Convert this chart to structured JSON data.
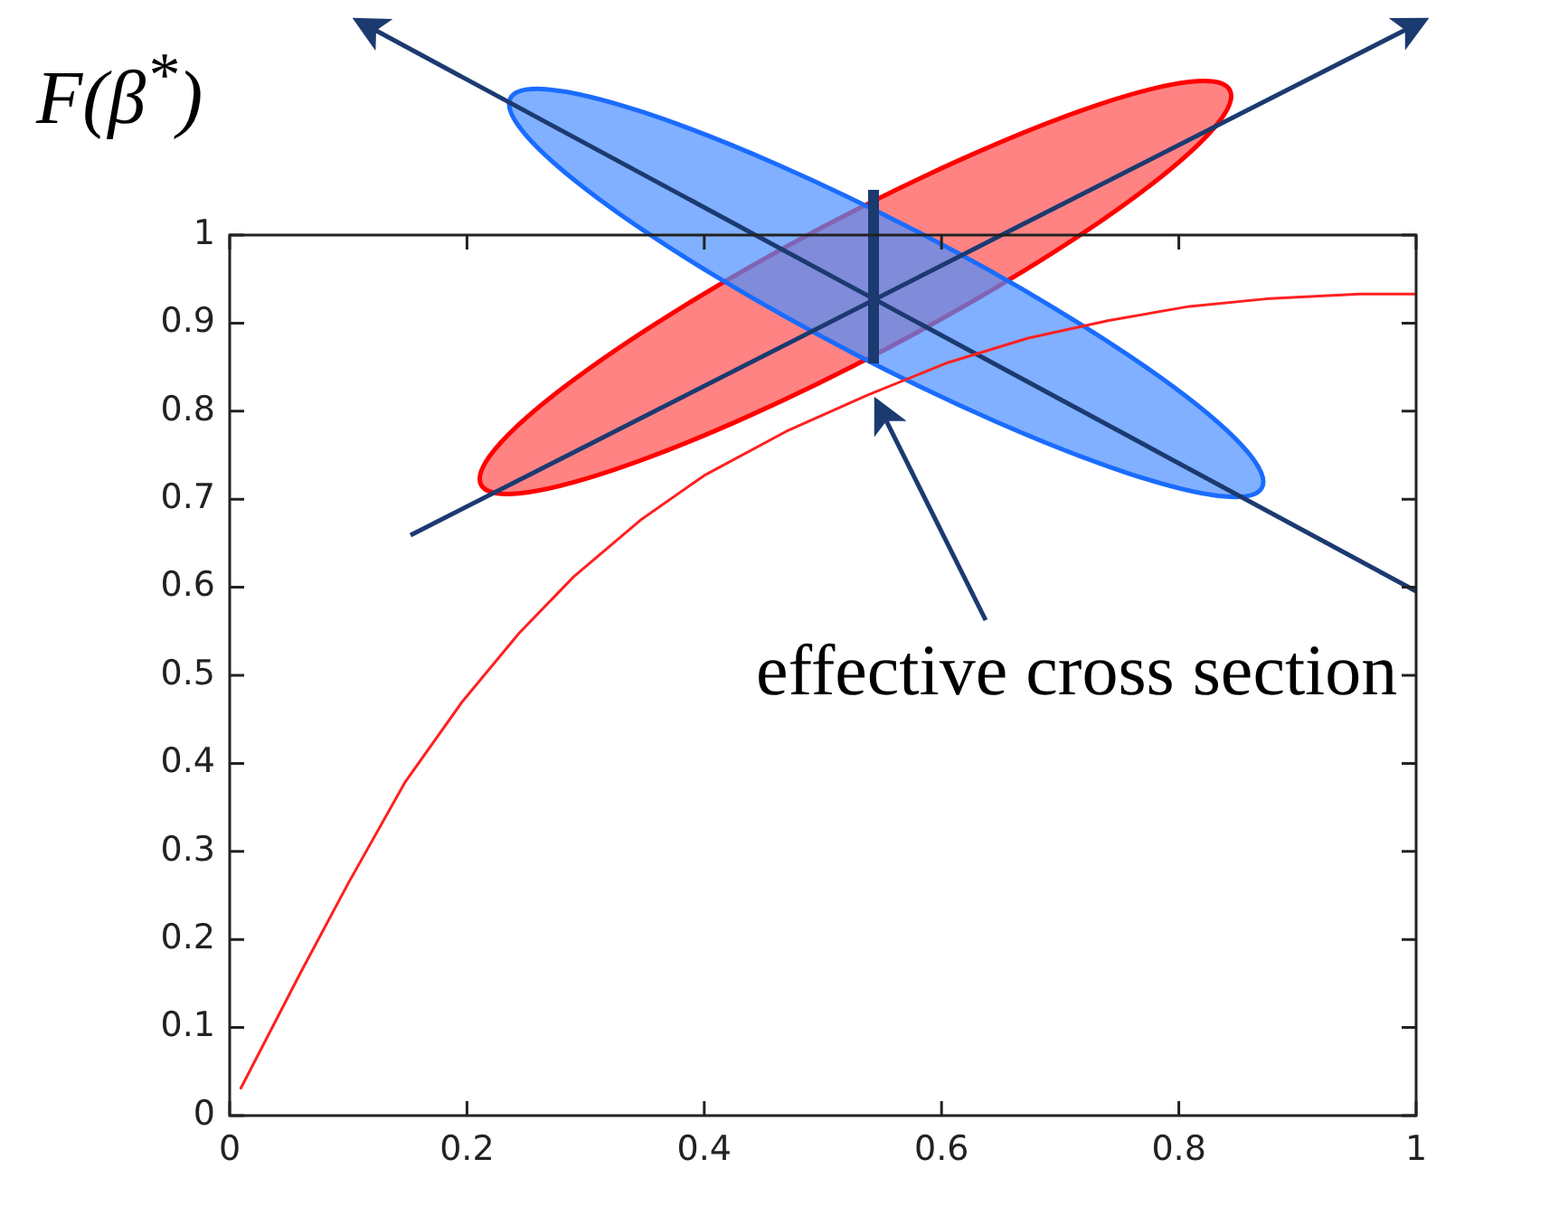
{
  "chart_data": {
    "type": "line",
    "ylabel": "F(β$^{*}$)",
    "annotations": [
      {
        "text": "effective cross section",
        "x": 0.545,
        "y": 0.82
      }
    ],
    "x": [
      0.009,
      0.06,
      0.1,
      0.148,
      0.196,
      0.244,
      0.29,
      0.346,
      0.4,
      0.469,
      0.537,
      0.605,
      0.673,
      0.741,
      0.809,
      0.877,
      0.952,
      1.0
    ],
    "series": [
      {
        "color": "#ff2020",
        "values": [
          0.03,
          0.163,
          0.264,
          0.379,
          0.47,
          0.548,
          0.612,
          0.676,
          0.727,
          0.777,
          0.818,
          0.855,
          0.883,
          0.903,
          0.919,
          0.928,
          0.933,
          0.933
        ]
      }
    ],
    "xlim": [
      0,
      1
    ],
    "xticks": [
      0,
      0.2,
      0.4,
      0.6,
      0.8,
      1
    ],
    "ylim": [
      0,
      1
    ],
    "yticks": [
      0,
      0.1,
      0.2,
      0.3,
      0.4,
      0.5,
      0.6,
      0.7,
      0.8,
      0.9,
      1
    ],
    "grid": false,
    "legend": false,
    "marker": "none",
    "line_style": "solid"
  }
}
